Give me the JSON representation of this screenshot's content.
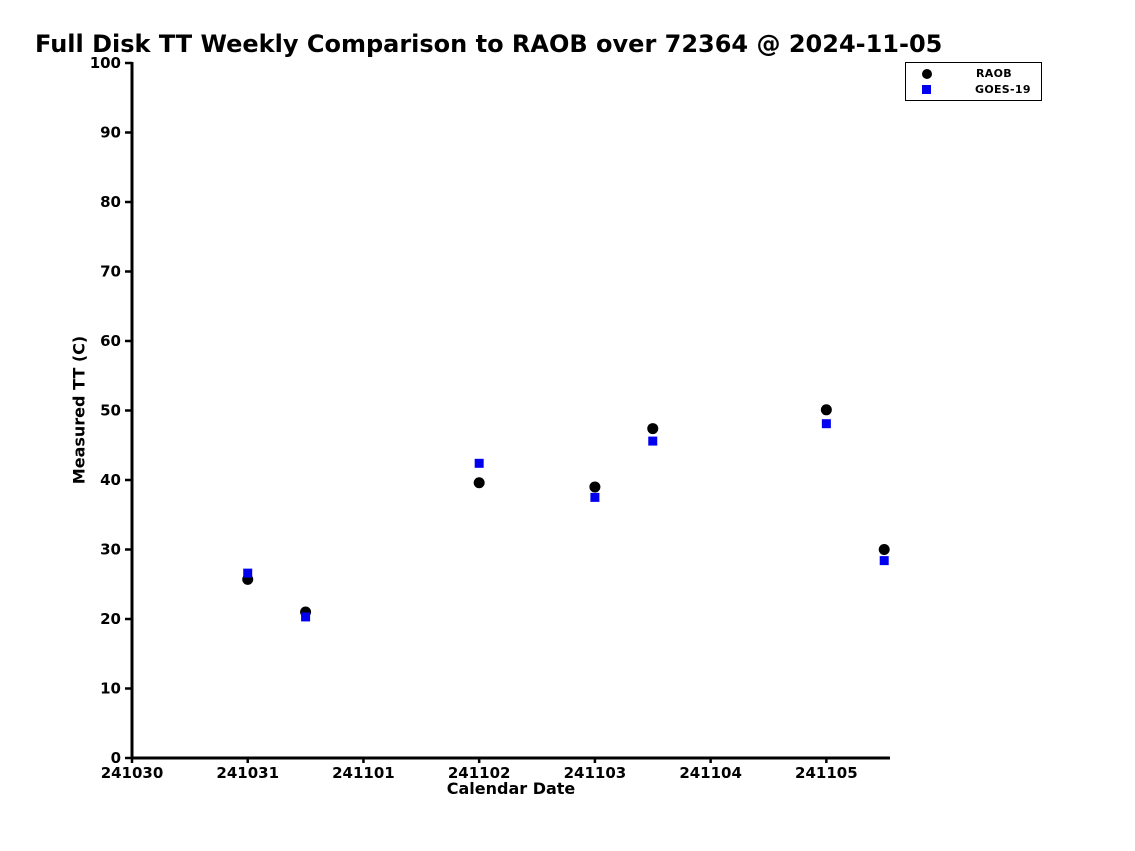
{
  "chart_data": {
    "type": "scatter",
    "title": "Full Disk TT Weekly Comparison to RAOB over 72364 @ 2024-11-05",
    "xlabel": "Calendar Date",
    "ylabel": "Measured TT (C)",
    "x_tick_labels": [
      "241030",
      "241031",
      "241101",
      "241102",
      "241103",
      "241104",
      "241105"
    ],
    "x_tick_positions": [
      0,
      1,
      2,
      3,
      4,
      5,
      6
    ],
    "xlim": [
      0,
      6.55
    ],
    "ylim": [
      0,
      100
    ],
    "y_ticks": [
      0,
      10,
      20,
      30,
      40,
      50,
      60,
      70,
      80,
      90,
      100
    ],
    "grid": false,
    "legend_position": "top-right",
    "series": [
      {
        "name": "RAOB",
        "marker": "circle",
        "color": "#000000",
        "x": [
          1.0,
          1.5,
          3.0,
          4.0,
          4.5,
          6.0,
          6.5
        ],
        "y": [
          25.7,
          21.0,
          39.6,
          39.0,
          47.4,
          50.1,
          30.0
        ]
      },
      {
        "name": "GOES-19",
        "marker": "square",
        "color": "#0000ee",
        "x": [
          1.0,
          1.5,
          3.0,
          4.0,
          4.5,
          6.0,
          6.5
        ],
        "y": [
          26.6,
          20.3,
          42.4,
          37.5,
          45.6,
          48.1,
          28.4
        ]
      }
    ]
  }
}
